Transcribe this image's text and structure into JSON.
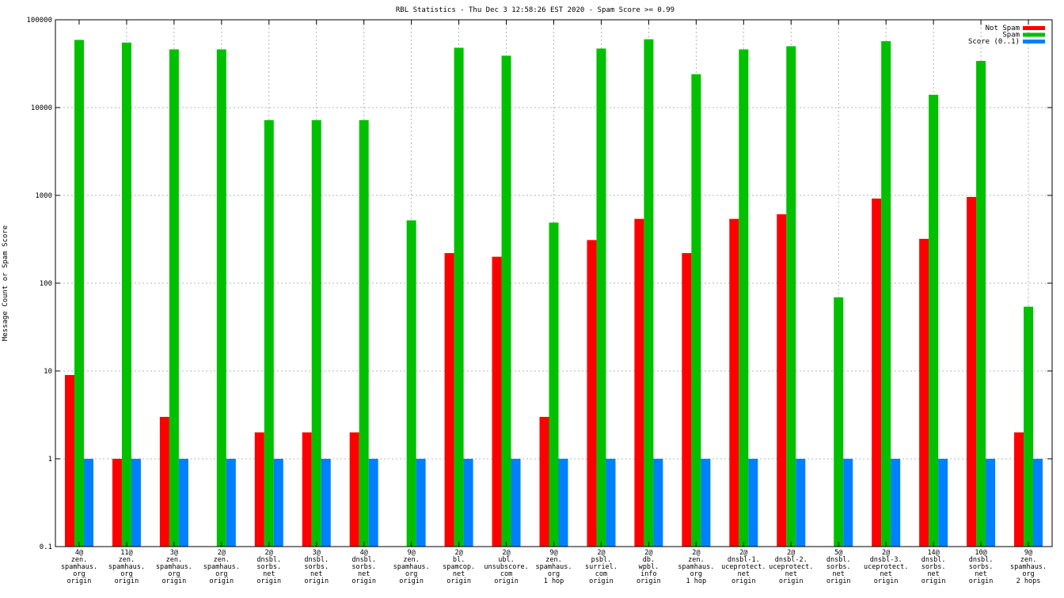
{
  "chart_data": {
    "type": "bar",
    "title": "RBL Statistics - Thu Dec  3 12:58:26 EST 2020 - Spam Score >= 0.99",
    "xlabel": "",
    "ylabel": "Message Count or Spam Score",
    "yscale": "log",
    "ylim": [
      0.1,
      100000
    ],
    "yticks": [
      "0.1",
      "1",
      "10",
      "100",
      "1000",
      "10000",
      "100000"
    ],
    "grid": true,
    "legend_position": "top-right",
    "categories": [
      [
        "4@",
        "zen.",
        "spamhaus.",
        "org",
        "origin"
      ],
      [
        "11@",
        "zen.",
        "spamhaus.",
        "org",
        "origin"
      ],
      [
        "3@",
        "zen.",
        "spamhaus.",
        "org",
        "origin"
      ],
      [
        "2@",
        "zen.",
        "spamhaus.",
        "org",
        "origin"
      ],
      [
        "2@",
        "dnsbl.",
        "sorbs.",
        "net",
        "origin"
      ],
      [
        "3@",
        "dnsbl.",
        "sorbs.",
        "net",
        "origin"
      ],
      [
        "4@",
        "dnsbl.",
        "sorbs.",
        "net",
        "origin"
      ],
      [
        "9@",
        "zen.",
        "spamhaus.",
        "org",
        "origin"
      ],
      [
        "2@",
        "bl.",
        "spamcop.",
        "net",
        "origin"
      ],
      [
        "2@",
        "ubl.",
        "unsubscore.",
        "com",
        "origin"
      ],
      [
        "9@",
        "zen.",
        "spamhaus.",
        "org",
        "1 hop"
      ],
      [
        "2@",
        "psbl.",
        "surriel.",
        "com",
        "origin"
      ],
      [
        "2@",
        "db.",
        "wpbl.",
        "info",
        "origin"
      ],
      [
        "2@",
        "zen.",
        "spamhaus.",
        "org",
        "1 hop"
      ],
      [
        "2@",
        "dnsbl-1.",
        "uceprotect.",
        "net",
        "origin"
      ],
      [
        "2@",
        "dnsbl-2.",
        "uceprotect.",
        "net",
        "origin"
      ],
      [
        "5@",
        "dnsbl.",
        "sorbs.",
        "net",
        "origin"
      ],
      [
        "2@",
        "dnsbl-3.",
        "uceprotect.",
        "net",
        "origin"
      ],
      [
        "14@",
        "dnsbl.",
        "sorbs.",
        "net",
        "origin"
      ],
      [
        "10@",
        "dnsbl.",
        "sorbs.",
        "net",
        "origin"
      ],
      [
        "9@",
        "zen.",
        "spamhaus.",
        "org",
        "2 hops"
      ]
    ],
    "series": [
      {
        "name": "Not Spam",
        "color": "#ff0000",
        "values": [
          9,
          1,
          3,
          null,
          2,
          2,
          2,
          null,
          220,
          200,
          3,
          310,
          540,
          220,
          540,
          610,
          null,
          920,
          320,
          960,
          2
        ]
      },
      {
        "name": "Spam",
        "color": "#00c000",
        "values": [
          59000,
          55000,
          46000,
          46000,
          7200,
          7200,
          7200,
          520,
          48000,
          39000,
          490,
          47000,
          60000,
          24000,
          46000,
          50000,
          69,
          57000,
          14000,
          34000,
          54
        ]
      },
      {
        "name": "Score (0..1)",
        "color": "#0080ff",
        "values": [
          1,
          1,
          1,
          1,
          1,
          1,
          1,
          1,
          1,
          1,
          1,
          1,
          1,
          1,
          1,
          1,
          1,
          1,
          1,
          1,
          1
        ]
      }
    ]
  }
}
